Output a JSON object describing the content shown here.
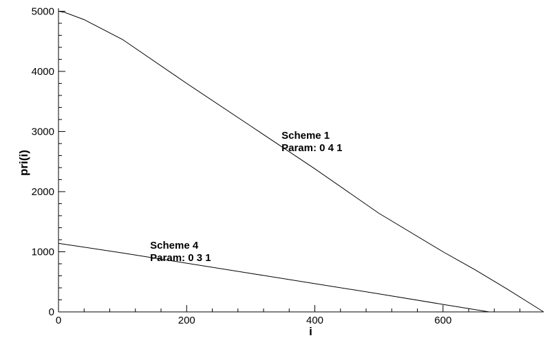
{
  "chart_data": {
    "type": "line",
    "title": "",
    "xlabel": "i",
    "ylabel": "pri(i)",
    "xlim": [
      0,
      757
    ],
    "ylim": [
      0,
      5050
    ],
    "grid": false,
    "legend": "none",
    "x_ticks": [
      0,
      200,
      400,
      600
    ],
    "y_ticks": [
      0,
      1000,
      2000,
      3000,
      4000,
      5000
    ],
    "x_tick_labels": [
      "0",
      "200",
      "400",
      "600"
    ],
    "y_tick_labels": [
      "0",
      "1000",
      "2000",
      "3000",
      "4000",
      "5000"
    ],
    "series": [
      {
        "x": [
          0,
          10,
          40,
          100,
          200,
          300,
          400,
          500,
          600,
          650,
          700,
          757
        ],
        "y": [
          5000,
          4980,
          4860,
          4530,
          3800,
          3090,
          2380,
          1640,
          1000,
          700,
          380,
          0
        ],
        "color": "#000000"
      },
      {
        "x": [
          0,
          100,
          200,
          300,
          400,
          500,
          600,
          672
        ],
        "y": [
          1140,
          980,
          810,
          640,
          470,
          300,
          125,
          0
        ],
        "color": "#000000"
      }
    ],
    "annotations": [
      {
        "lines": [
          "Scheme 1",
          "Param: 0 4 1"
        ],
        "x": 348,
        "y": 2880
      },
      {
        "lines": [
          "Scheme 4",
          "Param: 0 3 1"
        ],
        "x": 143,
        "y": 1050
      }
    ]
  }
}
